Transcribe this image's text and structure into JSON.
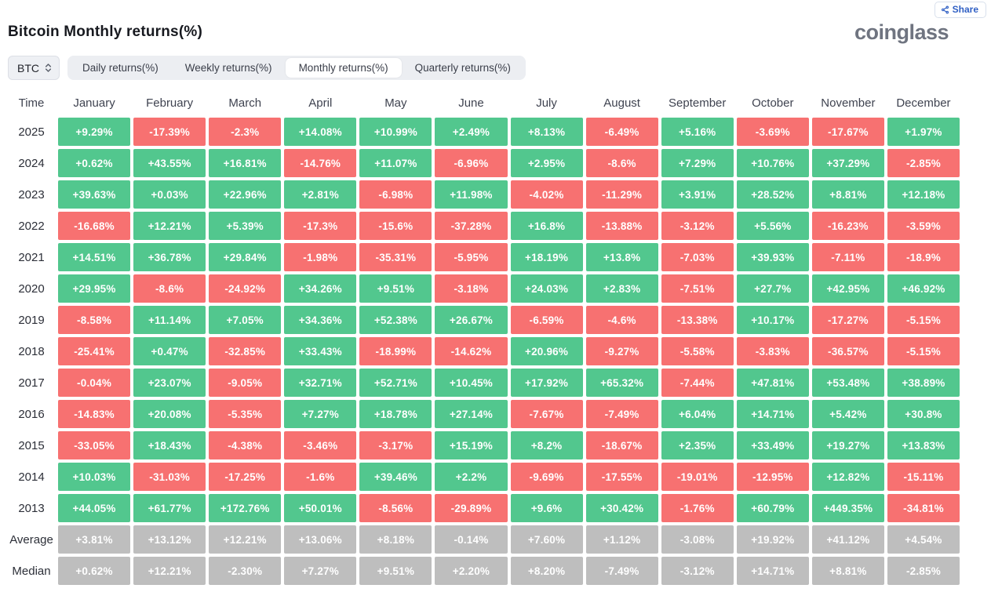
{
  "header": {
    "title": "Bitcoin Monthly returns(%)",
    "logo_text": "coinglass",
    "share_label": "Share"
  },
  "controls": {
    "symbol_select": {
      "value": "BTC"
    },
    "tabs": [
      {
        "label": "Daily returns(%)",
        "active": false
      },
      {
        "label": "Weekly returns(%)",
        "active": false
      },
      {
        "label": "Monthly returns(%)",
        "active": true
      },
      {
        "label": "Quarterly returns(%)",
        "active": false
      }
    ]
  },
  "colors": {
    "positive": "#52c78e",
    "negative": "#f77171",
    "neutral": "#bebebe",
    "accent_blue": "#2f5fc4"
  },
  "table": {
    "time_header": "Time",
    "months": [
      "January",
      "February",
      "March",
      "April",
      "May",
      "June",
      "July",
      "August",
      "September",
      "October",
      "November",
      "December"
    ],
    "rows": [
      {
        "label": "2025",
        "kind": "year",
        "values": [
          "+9.29%",
          "-17.39%",
          "-2.3%",
          "+14.08%",
          "+10.99%",
          "+2.49%",
          "+8.13%",
          "-6.49%",
          "+5.16%",
          "-3.69%",
          "-17.67%",
          "+1.97%"
        ]
      },
      {
        "label": "2024",
        "kind": "year",
        "values": [
          "+0.62%",
          "+43.55%",
          "+16.81%",
          "-14.76%",
          "+11.07%",
          "-6.96%",
          "+2.95%",
          "-8.6%",
          "+7.29%",
          "+10.76%",
          "+37.29%",
          "-2.85%"
        ]
      },
      {
        "label": "2023",
        "kind": "year",
        "values": [
          "+39.63%",
          "+0.03%",
          "+22.96%",
          "+2.81%",
          "-6.98%",
          "+11.98%",
          "-4.02%",
          "-11.29%",
          "+3.91%",
          "+28.52%",
          "+8.81%",
          "+12.18%"
        ]
      },
      {
        "label": "2022",
        "kind": "year",
        "values": [
          "-16.68%",
          "+12.21%",
          "+5.39%",
          "-17.3%",
          "-15.6%",
          "-37.28%",
          "+16.8%",
          "-13.88%",
          "-3.12%",
          "+5.56%",
          "-16.23%",
          "-3.59%"
        ]
      },
      {
        "label": "2021",
        "kind": "year",
        "values": [
          "+14.51%",
          "+36.78%",
          "+29.84%",
          "-1.98%",
          "-35.31%",
          "-5.95%",
          "+18.19%",
          "+13.8%",
          "-7.03%",
          "+39.93%",
          "-7.11%",
          "-18.9%"
        ]
      },
      {
        "label": "2020",
        "kind": "year",
        "values": [
          "+29.95%",
          "-8.6%",
          "-24.92%",
          "+34.26%",
          "+9.51%",
          "-3.18%",
          "+24.03%",
          "+2.83%",
          "-7.51%",
          "+27.7%",
          "+42.95%",
          "+46.92%"
        ]
      },
      {
        "label": "2019",
        "kind": "year",
        "values": [
          "-8.58%",
          "+11.14%",
          "+7.05%",
          "+34.36%",
          "+52.38%",
          "+26.67%",
          "-6.59%",
          "-4.6%",
          "-13.38%",
          "+10.17%",
          "-17.27%",
          "-5.15%"
        ]
      },
      {
        "label": "2018",
        "kind": "year",
        "values": [
          "-25.41%",
          "+0.47%",
          "-32.85%",
          "+33.43%",
          "-18.99%",
          "-14.62%",
          "+20.96%",
          "-9.27%",
          "-5.58%",
          "-3.83%",
          "-36.57%",
          "-5.15%"
        ]
      },
      {
        "label": "2017",
        "kind": "year",
        "values": [
          "-0.04%",
          "+23.07%",
          "-9.05%",
          "+32.71%",
          "+52.71%",
          "+10.45%",
          "+17.92%",
          "+65.32%",
          "-7.44%",
          "+47.81%",
          "+53.48%",
          "+38.89%"
        ]
      },
      {
        "label": "2016",
        "kind": "year",
        "values": [
          "-14.83%",
          "+20.08%",
          "-5.35%",
          "+7.27%",
          "+18.78%",
          "+27.14%",
          "-7.67%",
          "-7.49%",
          "+6.04%",
          "+14.71%",
          "+5.42%",
          "+30.8%"
        ]
      },
      {
        "label": "2015",
        "kind": "year",
        "values": [
          "-33.05%",
          "+18.43%",
          "-4.38%",
          "-3.46%",
          "-3.17%",
          "+15.19%",
          "+8.2%",
          "-18.67%",
          "+2.35%",
          "+33.49%",
          "+19.27%",
          "+13.83%"
        ]
      },
      {
        "label": "2014",
        "kind": "year",
        "values": [
          "+10.03%",
          "-31.03%",
          "-17.25%",
          "-1.6%",
          "+39.46%",
          "+2.2%",
          "-9.69%",
          "-17.55%",
          "-19.01%",
          "-12.95%",
          "+12.82%",
          "-15.11%"
        ]
      },
      {
        "label": "2013",
        "kind": "year",
        "values": [
          "+44.05%",
          "+61.77%",
          "+172.76%",
          "+50.01%",
          "-8.56%",
          "-29.89%",
          "+9.6%",
          "+30.42%",
          "-1.76%",
          "+60.79%",
          "+449.35%",
          "-34.81%"
        ]
      },
      {
        "label": "Average",
        "kind": "summary",
        "values": [
          "+3.81%",
          "+13.12%",
          "+12.21%",
          "+13.06%",
          "+8.18%",
          "-0.14%",
          "+7.60%",
          "+1.12%",
          "-3.08%",
          "+19.92%",
          "+41.12%",
          "+4.54%"
        ]
      },
      {
        "label": "Median",
        "kind": "summary",
        "values": [
          "+0.62%",
          "+12.21%",
          "-2.30%",
          "+7.27%",
          "+9.51%",
          "+2.20%",
          "+8.20%",
          "-7.49%",
          "-3.12%",
          "+14.71%",
          "+8.81%",
          "-2.85%"
        ]
      }
    ]
  }
}
